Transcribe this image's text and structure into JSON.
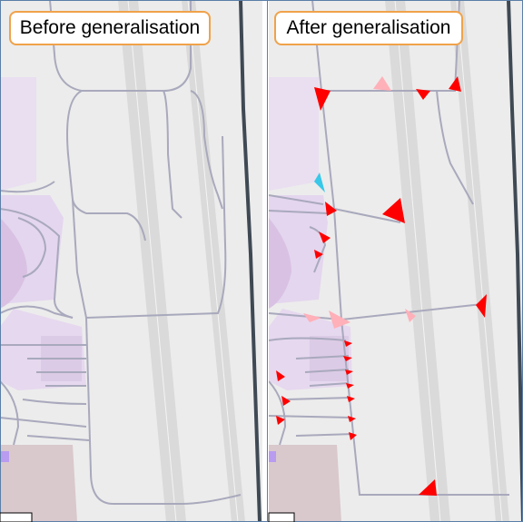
{
  "panels": [
    {
      "title": "Before generalisation",
      "state": "original"
    },
    {
      "title": "After generalisation",
      "state": "generalised"
    }
  ],
  "colors": {
    "background": "#ececec",
    "runway": "#d8d8d8",
    "taxiway": "#a9a9bd",
    "apron": "#e7d9ee",
    "terminal": "#d7b6dc",
    "building": "#cdb3b8",
    "highway": "#3f4954",
    "label_border": "#f0a24a",
    "removed_highlight": "#ff0000",
    "partial_highlight": "#ffb0b8",
    "added_highlight": "#38c8e8"
  },
  "icons": [
    "triangle-marker-icon"
  ]
}
